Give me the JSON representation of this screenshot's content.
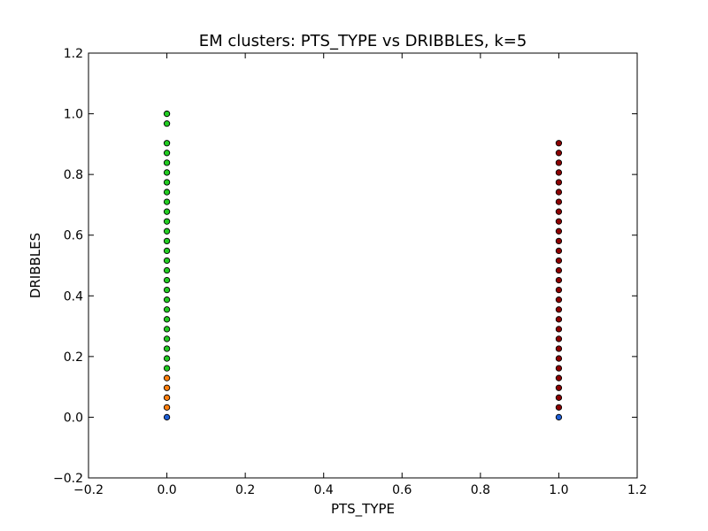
{
  "chart_data": {
    "type": "scatter",
    "title": "EM clusters: PTS_TYPE vs DRIBBLES, k=5",
    "xlabel": "PTS_TYPE",
    "ylabel": "DRIBBLES",
    "xlim": [
      -0.2,
      1.2
    ],
    "ylim": [
      -0.2,
      1.2
    ],
    "xticks": [
      -0.2,
      0.0,
      0.2,
      0.4,
      0.6,
      0.8,
      1.0,
      1.2
    ],
    "yticks": [
      -0.2,
      0.0,
      0.2,
      0.4,
      0.6,
      0.8,
      1.0,
      1.2
    ],
    "xtick_labels": [
      "−0.2",
      "0.0",
      "0.2",
      "0.4",
      "0.6",
      "0.8",
      "1.0",
      "1.2"
    ],
    "ytick_labels": [
      "−0.2",
      "0.0",
      "0.2",
      "0.4",
      "0.6",
      "0.8",
      "1.0",
      "1.2"
    ],
    "grid": false,
    "legend": "none",
    "series": [
      {
        "color": "#1f5fd6",
        "points": [
          [
            0,
            0.0
          ],
          [
            1,
            0.0
          ]
        ]
      },
      {
        "color": "#ff7f0e",
        "points": [
          [
            0,
            0.0323
          ],
          [
            0,
            0.0645
          ],
          [
            0,
            0.0968
          ],
          [
            0,
            0.129
          ]
        ]
      },
      {
        "color": "#22cc22",
        "points": [
          [
            0,
            0.1613
          ],
          [
            0,
            0.1935
          ],
          [
            0,
            0.2258
          ],
          [
            0,
            0.2581
          ],
          [
            0,
            0.2903
          ],
          [
            0,
            0.3226
          ],
          [
            0,
            0.3548
          ],
          [
            0,
            0.3871
          ],
          [
            0,
            0.4194
          ],
          [
            0,
            0.4516
          ],
          [
            0,
            0.4839
          ],
          [
            0,
            0.5161
          ],
          [
            0,
            0.5484
          ],
          [
            0,
            0.5806
          ],
          [
            0,
            0.6129
          ],
          [
            0,
            0.6452
          ],
          [
            0,
            0.6774
          ],
          [
            0,
            0.7097
          ],
          [
            0,
            0.7419
          ],
          [
            0,
            0.7742
          ],
          [
            0,
            0.8065
          ],
          [
            0,
            0.8387
          ],
          [
            0,
            0.871
          ],
          [
            0,
            0.9032
          ],
          [
            0,
            0.9677
          ],
          [
            0,
            1.0
          ]
        ]
      },
      {
        "color": "#8b0000",
        "points": [
          [
            1,
            0.0323
          ],
          [
            1,
            0.0645
          ],
          [
            1,
            0.0968
          ],
          [
            1,
            0.129
          ],
          [
            1,
            0.1613
          ],
          [
            1,
            0.1935
          ],
          [
            1,
            0.2258
          ],
          [
            1,
            0.2581
          ],
          [
            1,
            0.2903
          ],
          [
            1,
            0.3226
          ],
          [
            1,
            0.3548
          ],
          [
            1,
            0.3871
          ],
          [
            1,
            0.4194
          ],
          [
            1,
            0.4516
          ],
          [
            1,
            0.4839
          ],
          [
            1,
            0.5161
          ],
          [
            1,
            0.5484
          ],
          [
            1,
            0.5806
          ],
          [
            1,
            0.6129
          ],
          [
            1,
            0.6452
          ],
          [
            1,
            0.6774
          ],
          [
            1,
            0.7097
          ],
          [
            1,
            0.7419
          ],
          [
            1,
            0.7742
          ],
          [
            1,
            0.8065
          ],
          [
            1,
            0.8387
          ],
          [
            1,
            0.871
          ],
          [
            1,
            0.9032
          ]
        ]
      }
    ]
  }
}
